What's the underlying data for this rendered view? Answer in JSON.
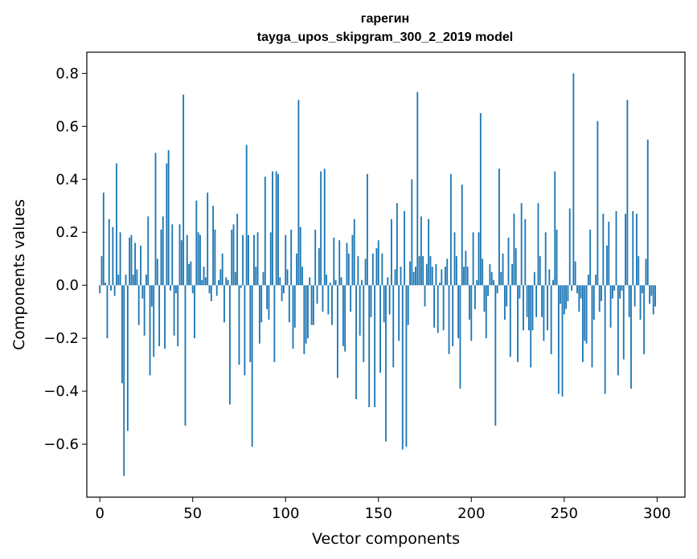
{
  "chart_data": {
    "type": "bar",
    "title": "гарегин",
    "subtitle": "tayga_upos_skipgram_300_2_2019 model",
    "xlabel": "Vector components",
    "ylabel": "Components values",
    "xlim": [
      -7,
      315
    ],
    "ylim": [
      -0.8,
      0.88
    ],
    "xticks": [
      0,
      50,
      100,
      150,
      200,
      250,
      300
    ],
    "yticks": [
      -0.6,
      -0.4,
      -0.2,
      0.0,
      0.2,
      0.4,
      0.6,
      0.8
    ],
    "xtick_labels": [
      "0",
      "50",
      "100",
      "150",
      "200",
      "250",
      "300"
    ],
    "ytick_labels": [
      "−0.6",
      "−0.4",
      "−0.2",
      "0.0",
      "0.2",
      "0.4",
      "0.6",
      "0.8"
    ],
    "bar_color": "#1f77b4",
    "grid": false,
    "values": [
      -0.03,
      0.11,
      0.35,
      0.01,
      -0.2,
      0.25,
      -0.02,
      0.22,
      -0.04,
      0.46,
      0.04,
      0.2,
      -0.37,
      -0.72,
      0.04,
      -0.55,
      0.18,
      0.19,
      0.04,
      0.16,
      0.06,
      -0.15,
      0.15,
      -0.05,
      -0.19,
      0.04,
      0.26,
      -0.34,
      -0.08,
      -0.27,
      0.5,
      0.1,
      -0.23,
      0.21,
      0.26,
      -0.24,
      0.46,
      0.51,
      -0.02,
      0.23,
      -0.19,
      -0.03,
      -0.23,
      0.23,
      0.17,
      0.72,
      -0.53,
      0.19,
      0.08,
      0.09,
      -0.03,
      -0.2,
      0.32,
      0.2,
      0.19,
      0.02,
      0.07,
      0.03,
      0.35,
      -0.03,
      -0.06,
      0.3,
      0.21,
      -0.04,
      0.02,
      0.06,
      0.12,
      -0.14,
      0.03,
      0.02,
      -0.45,
      0.21,
      0.23,
      0.05,
      0.27,
      -0.3,
      -0.01,
      0.19,
      -0.34,
      0.53,
      0.19,
      -0.29,
      -0.61,
      0.19,
      0.07,
      0.2,
      -0.22,
      -0.14,
      0.05,
      0.41,
      -0.09,
      -0.13,
      0.2,
      0.43,
      -0.29,
      0.43,
      0.42,
      0.03,
      -0.06,
      -0.03,
      0.19,
      0.06,
      -0.14,
      0.21,
      -0.24,
      -0.16,
      0.12,
      0.7,
      0.22,
      0.07,
      -0.26,
      -0.22,
      -0.2,
      0.03,
      -0.15,
      -0.15,
      0.21,
      -0.07,
      0.14,
      0.43,
      -0.1,
      0.44,
      0.04,
      -0.11,
      0.01,
      -0.15,
      0.18,
      0.02,
      -0.35,
      0.17,
      0.03,
      -0.23,
      -0.25,
      0.16,
      0.12,
      -0.1,
      0.19,
      0.25,
      -0.43,
      0.11,
      -0.19,
      0.02,
      -0.29,
      0.1,
      0.42,
      -0.46,
      -0.12,
      0.12,
      -0.46,
      0.14,
      0.17,
      -0.33,
      0.12,
      -0.14,
      -0.59,
      0.03,
      -0.11,
      0.25,
      -0.31,
      0.06,
      0.31,
      -0.21,
      0.07,
      -0.62,
      0.28,
      -0.61,
      -0.15,
      0.09,
      0.4,
      0.05,
      0.07,
      0.73,
      0.11,
      0.26,
      0.11,
      -0.08,
      0.08,
      0.25,
      0.11,
      0.07,
      -0.16,
      0.08,
      -0.18,
      0.01,
      0.06,
      -0.17,
      0.07,
      0.1,
      -0.26,
      0.42,
      -0.23,
      0.2,
      0.11,
      -0.2,
      -0.39,
      0.38,
      0.07,
      0.13,
      0.07,
      -0.13,
      -0.21,
      0.2,
      -0.09,
      0.02,
      0.2,
      0.65,
      0.1,
      -0.1,
      -0.2,
      -0.04,
      0.08,
      0.05,
      0.02,
      -0.53,
      -0.03,
      0.44,
      0.05,
      0.12,
      -0.13,
      -0.08,
      0.18,
      -0.27,
      0.08,
      0.27,
      0.14,
      -0.29,
      -0.05,
      0.31,
      -0.17,
      0.25,
      -0.12,
      -0.17,
      -0.31,
      -0.17,
      0.05,
      -0.12,
      0.31,
      0.11,
      -0.12,
      -0.21,
      0.2,
      -0.17,
      0.06,
      -0.26,
      0.02,
      0.43,
      0.21,
      -0.41,
      -0.07,
      -0.42,
      -0.11,
      -0.09,
      -0.06,
      0.29,
      -0.02,
      0.8,
      0.09,
      -0.03,
      -0.1,
      -0.05,
      -0.29,
      -0.21,
      -0.22,
      0.04,
      0.21,
      -0.31,
      -0.13,
      0.04,
      0.62,
      -0.1,
      -0.06,
      0.27,
      -0.41,
      0.15,
      0.24,
      -0.16,
      -0.05,
      -0.02,
      0.28,
      -0.34,
      -0.05,
      -0.02,
      -0.28,
      0.27,
      0.7,
      -0.12,
      -0.39,
      0.28,
      -0.08,
      0.27,
      0.11,
      -0.13,
      -0.03,
      -0.26,
      0.1,
      0.55,
      -0.07,
      -0.04,
      -0.11,
      -0.08
    ]
  }
}
